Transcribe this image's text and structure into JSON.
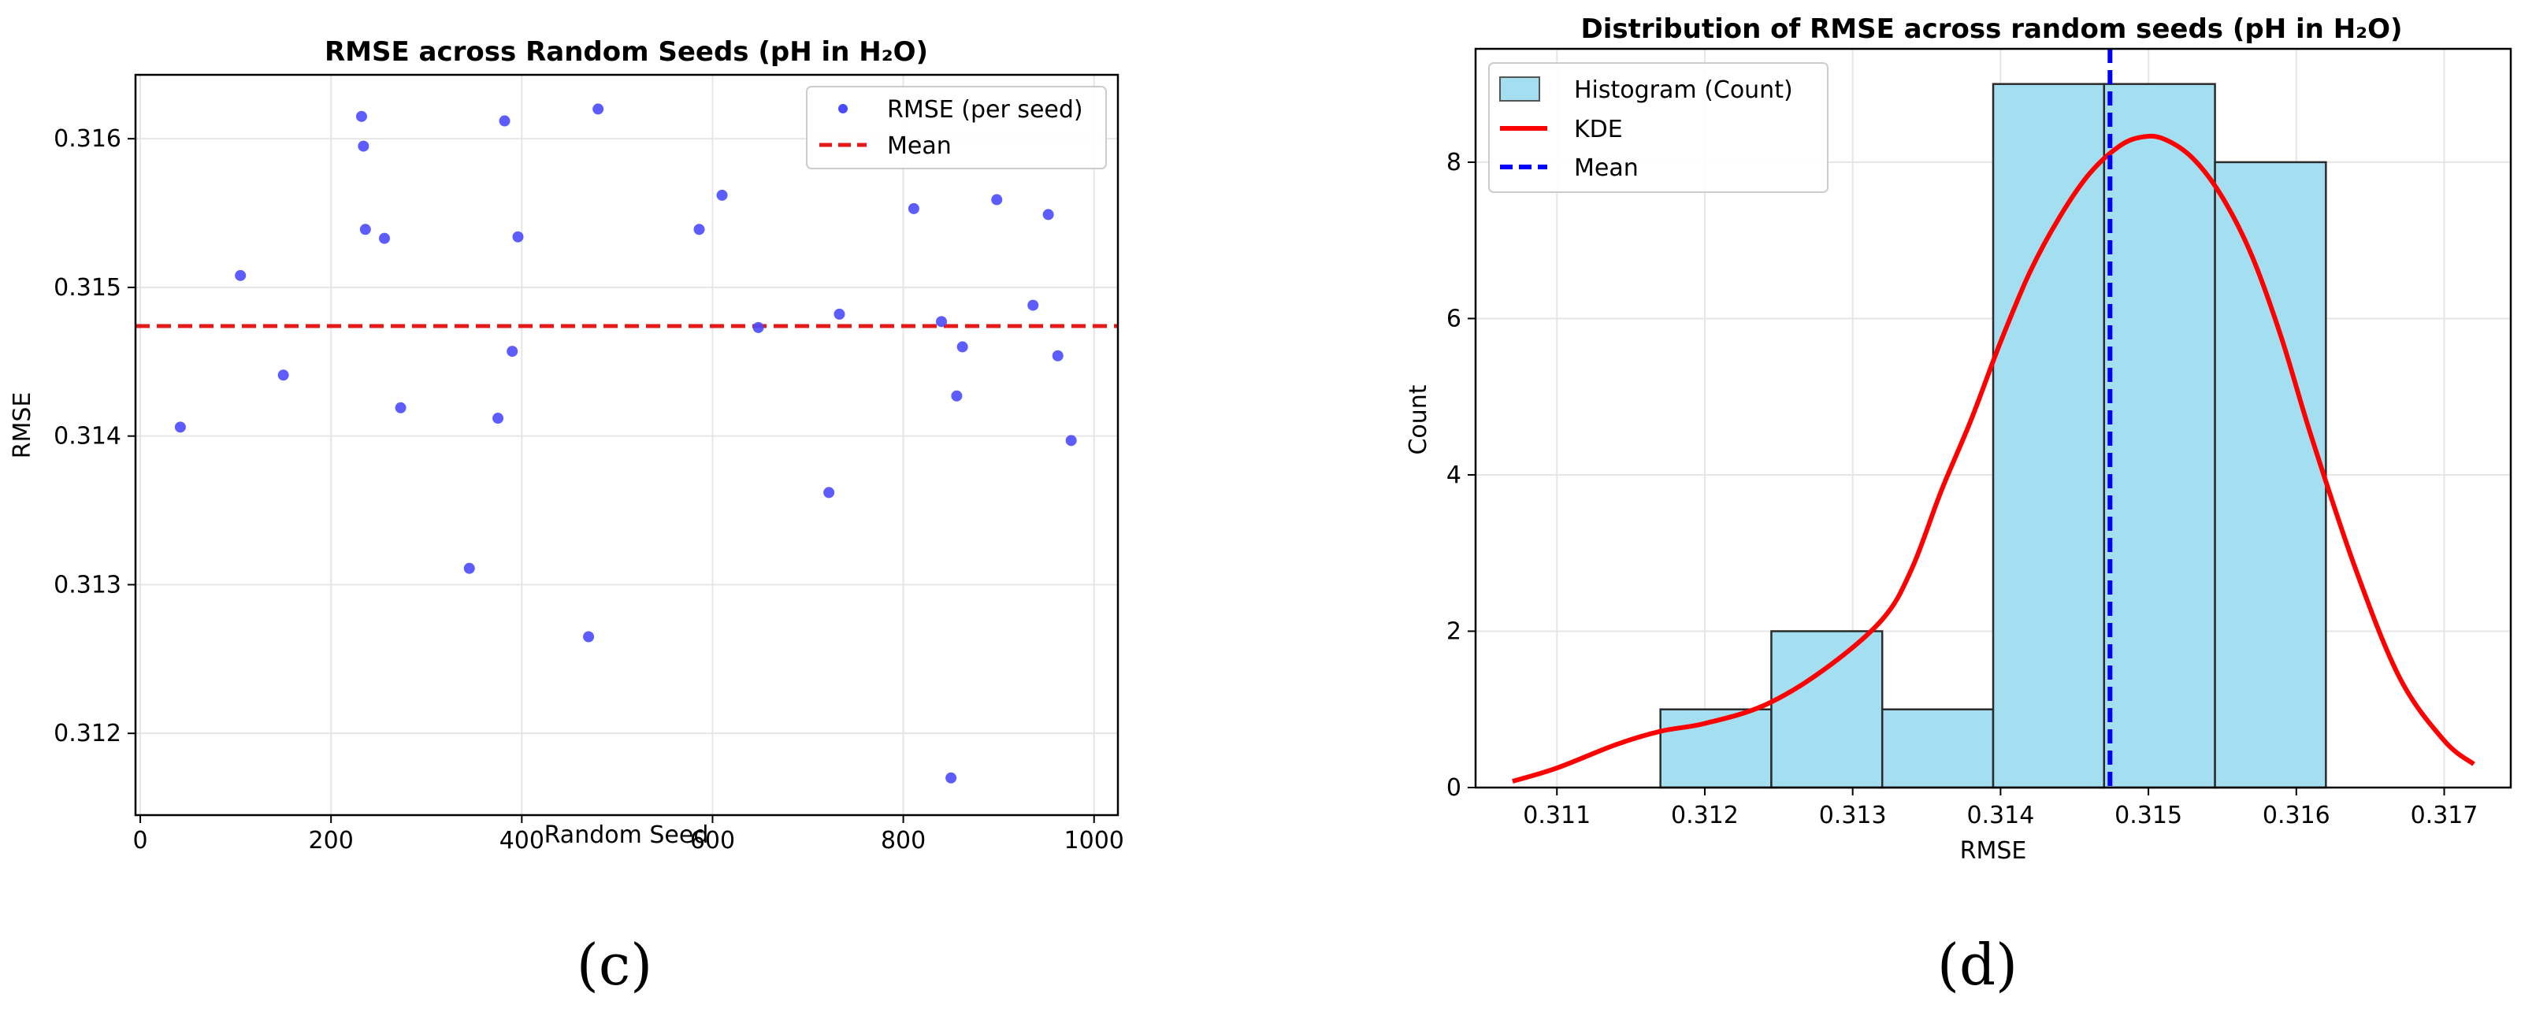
{
  "panel_labels": {
    "left": "(c)",
    "right": "(d)"
  },
  "chart_data": [
    {
      "type": "scatter",
      "title": "RMSE across Random Seeds (pH in H₂O)",
      "xlabel": "Random Seed",
      "ylabel": "RMSE",
      "xlim": [
        -5,
        1025
      ],
      "ylim": [
        0.31145,
        0.31643
      ],
      "xticks": [
        0,
        200,
        400,
        600,
        800,
        1000
      ],
      "yticks": [
        0.312,
        0.313,
        0.314,
        0.315,
        0.316
      ],
      "ytick_labels": [
        "0.312",
        "0.313",
        "0.314",
        "0.315",
        "0.316"
      ],
      "legend": {
        "position": "top-right",
        "entries": [
          "RMSE (per seed)",
          "Mean"
        ]
      },
      "grid": true,
      "point_color": "#4a4aff",
      "mean_color": "#e61919",
      "mean": 0.31474,
      "series": [
        {
          "name": "RMSE (per seed)",
          "x": [
            42,
            105,
            150,
            232,
            234,
            236,
            256,
            273,
            345,
            375,
            382,
            390,
            396,
            470,
            480,
            586,
            610,
            648,
            722,
            733,
            811,
            840,
            850,
            856,
            862,
            898,
            936,
            952,
            962,
            976
          ],
          "y": [
            0.31406,
            0.31508,
            0.31441,
            0.31615,
            0.31595,
            0.31539,
            0.31533,
            0.31419,
            0.31311,
            0.31412,
            0.31612,
            0.31457,
            0.31534,
            0.31265,
            0.3162,
            0.31539,
            0.31562,
            0.31473,
            0.31362,
            0.31482,
            0.31553,
            0.31477,
            0.3117,
            0.31427,
            0.3146,
            0.31559,
            0.31488,
            0.31549,
            0.31454,
            0.31397
          ]
        }
      ]
    },
    {
      "type": "bar",
      "subtype": "histogram+kde",
      "title": "Distribution of RMSE across random seeds (pH in H₂O)",
      "xlabel": "RMSE",
      "ylabel": "Count",
      "xlim": [
        0.31045,
        0.31745
      ],
      "ylim": [
        0,
        9.45
      ],
      "xticks": [
        0.311,
        0.312,
        0.313,
        0.314,
        0.315,
        0.316,
        0.317
      ],
      "xtick_labels": [
        "0.311",
        "0.312",
        "0.313",
        "0.314",
        "0.315",
        "0.316",
        "0.317"
      ],
      "yticks": [
        0,
        2,
        4,
        6,
        8
      ],
      "legend": {
        "position": "top-left",
        "entries": [
          "Histogram (Count)",
          "KDE",
          "Mean"
        ]
      },
      "grid": true,
      "bar_color": "#a3dff0",
      "kde_color": "#ff0000",
      "mean_color": "#0000ff",
      "mean": 0.31474,
      "bins": [
        {
          "x0": 0.3117,
          "x1": 0.31245,
          "count": 1
        },
        {
          "x0": 0.31245,
          "x1": 0.3132,
          "count": 2
        },
        {
          "x0": 0.3132,
          "x1": 0.31395,
          "count": 1
        },
        {
          "x0": 0.31395,
          "x1": 0.3147,
          "count": 9
        },
        {
          "x0": 0.3147,
          "x1": 0.31545,
          "count": 9
        },
        {
          "x0": 0.31545,
          "x1": 0.3162,
          "count": 8
        }
      ],
      "kde": {
        "x": [
          0.3107,
          0.311,
          0.3114,
          0.3117,
          0.312,
          0.3124,
          0.3128,
          0.3132,
          0.3134,
          0.3136,
          0.3138,
          0.314,
          0.3142,
          0.3144,
          0.3146,
          0.3148,
          0.31495,
          0.3151,
          0.3153,
          0.3155,
          0.3157,
          0.3159,
          0.3161,
          0.3164,
          0.3167,
          0.317,
          0.3172
        ],
        "y": [
          0.08,
          0.25,
          0.55,
          0.72,
          0.82,
          1.05,
          1.5,
          2.15,
          2.8,
          3.8,
          4.7,
          5.7,
          6.6,
          7.3,
          7.85,
          8.2,
          8.32,
          8.3,
          8.05,
          7.55,
          6.8,
          5.75,
          4.5,
          2.8,
          1.4,
          0.6,
          0.3
        ]
      }
    }
  ]
}
